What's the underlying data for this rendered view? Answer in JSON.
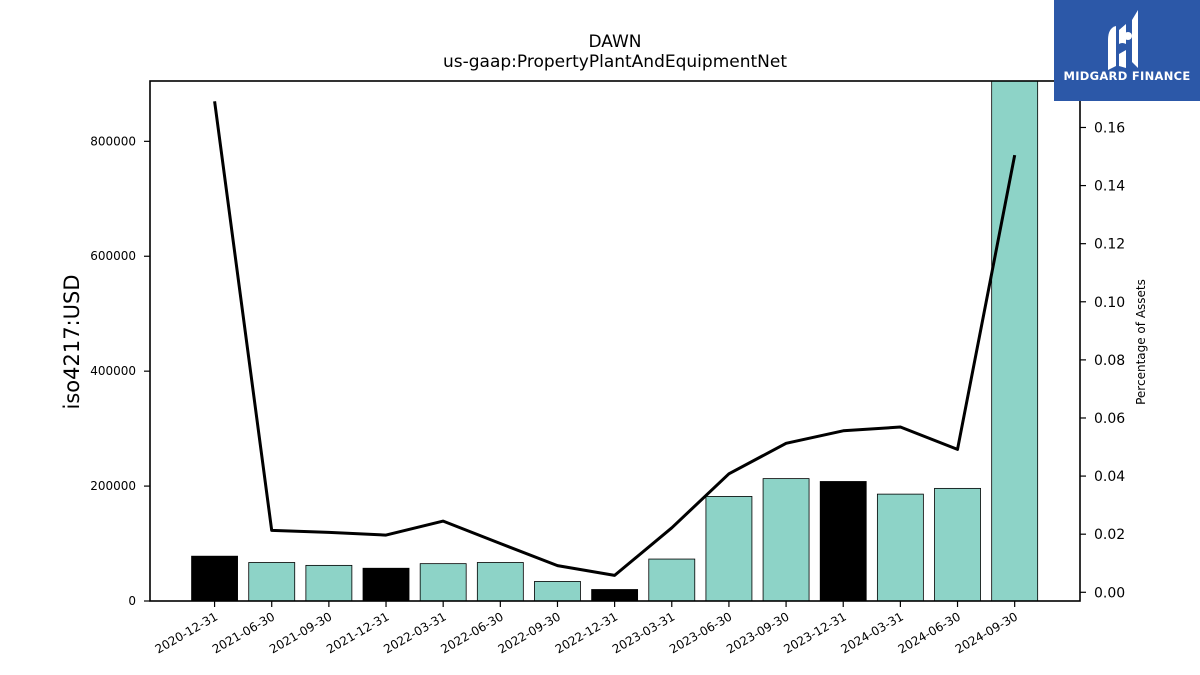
{
  "chart_data": {
    "type": "bar",
    "title": "DAWN",
    "subtitle": "us-gaap:PropertyPlantAndEquipmentNet",
    "ylabel": "iso4217:USD",
    "y2label": "Percentage of Assets",
    "categories": [
      "2020-12-31",
      "2021-06-30",
      "2021-09-30",
      "2021-12-31",
      "2022-03-31",
      "2022-06-30",
      "2022-09-30",
      "2022-12-31",
      "2023-03-31",
      "2023-06-30",
      "2023-09-30",
      "2023-12-31",
      "2024-03-31",
      "2024-06-30",
      "2024-09-30"
    ],
    "series": [
      {
        "type": "bar",
        "values": [
          78000,
          67000,
          62000,
          57000,
          65000,
          67000,
          34000,
          20000,
          73000,
          182000,
          213000,
          208000,
          186000,
          196000,
          905000
        ],
        "bar_colors": [
          "#000000",
          "#8dd3c7",
          "#8dd3c7",
          "#000000",
          "#8dd3c7",
          "#8dd3c7",
          "#8dd3c7",
          "#000000",
          "#8dd3c7",
          "#8dd3c7",
          "#8dd3c7",
          "#000000",
          "#8dd3c7",
          "#8dd3c7",
          "#8dd3c7"
        ]
      },
      {
        "type": "line",
        "axis": "right",
        "color": "#000000",
        "values": [
          0.169,
          0.0213,
          0.0206,
          0.0197,
          0.0245,
          0.0168,
          0.0092,
          0.0058,
          0.0222,
          0.0408,
          0.0513,
          0.0556,
          0.0569,
          0.0492,
          0.1505
        ]
      }
    ],
    "ylim": [
      0,
      905000
    ],
    "yticks": [
      0,
      200000,
      400000,
      600000,
      800000
    ],
    "y2lim": [
      -0.003,
      0.176
    ],
    "y2ticks": [
      "0.00",
      "0.02",
      "0.04",
      "0.06",
      "0.08",
      "0.10",
      "0.12",
      "0.14",
      "0.16"
    ]
  },
  "logo": {
    "text": "MIDGARD FINANCE",
    "color": "#2c58a8"
  }
}
